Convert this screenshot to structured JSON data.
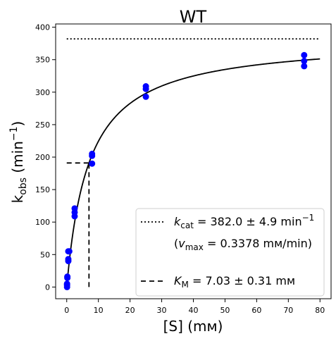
{
  "chart_data": {
    "type": "scatter",
    "title": "WT",
    "xlabel": "[S] (mм)",
    "ylabel": "k_obs (min⁻¹)",
    "xlim": [
      -3.5,
      83.5
    ],
    "ylim": [
      -18,
      405
    ],
    "x_ticks": [
      0,
      10,
      20,
      30,
      40,
      50,
      60,
      70,
      80
    ],
    "y_ticks": [
      0,
      50,
      100,
      150,
      200,
      250,
      300,
      350,
      400
    ],
    "grid": false,
    "legend_position": "lower-right",
    "colors": {
      "points": "#0000ff",
      "lines": "#000000"
    },
    "series": [
      {
        "type": "scatter",
        "x": [
          0.1,
          0.1,
          0.1,
          0.2,
          0.2,
          0.5,
          0.5,
          0.5,
          0.8,
          2.5,
          2.5,
          2.5,
          8.0,
          8.0,
          8.0,
          25.0,
          25.0,
          25.0,
          75.0,
          75.0,
          75.0
        ],
        "y": [
          0,
          3,
          5,
          14,
          16,
          40,
          43,
          55,
          55,
          109,
          115,
          121,
          190,
          202,
          205,
          293,
          305,
          309,
          340,
          348,
          357
        ]
      },
      {
        "type": "line",
        "curve": "michaelis-menten",
        "kcat": 382.0,
        "km": 7.03,
        "x_range": [
          0,
          80
        ]
      }
    ],
    "reference_lines": [
      {
        "style": "dotted",
        "y": 382.0,
        "x_range": [
          0,
          80
        ]
      },
      {
        "style": "dashed",
        "x": 7.03,
        "y": 191.0,
        "x_start": 0
      }
    ],
    "legend": {
      "kcat_label": "k_cat = 382.0 ± 4.9 min⁻¹",
      "vmax_label": "(v_max = 0.3378 mм/min)",
      "km_label": "K_M = 7.03 ± 0.31 mм"
    }
  }
}
